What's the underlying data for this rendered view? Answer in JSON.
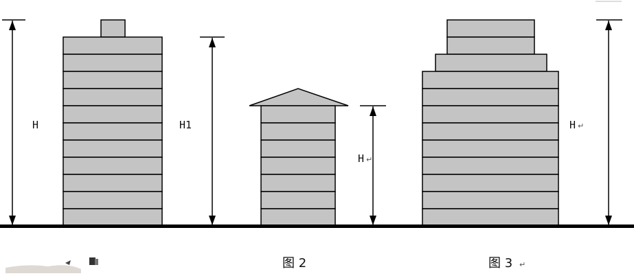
{
  "figure": {
    "label_building1_h": "H",
    "label_building1_h1": "H1",
    "label_figure2_h": "H",
    "label_figure3_h": "H",
    "caption_figure2": "图 2",
    "caption_figure3": "图 3",
    "return_mark": "↵"
  },
  "colors": {
    "floor_fill": "#c4c4c4",
    "line": "#000000",
    "ground": "#000000",
    "background": "#ffffff"
  }
}
